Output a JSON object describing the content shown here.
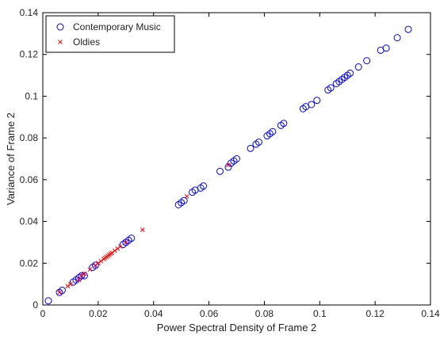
{
  "chart_data": {
    "type": "scatter",
    "title": "",
    "xlabel": "Power Spectral Density of Frame 2",
    "ylabel": "Variance of Frame 2",
    "xlim": [
      0,
      0.14
    ],
    "ylim": [
      0,
      0.14
    ],
    "xticks": [
      "0",
      "0.02",
      "0.04",
      "0.06",
      "0.08",
      "0.1",
      "0.12",
      "0.14"
    ],
    "yticks": [
      "0",
      "0.02",
      "0.04",
      "0.06",
      "0.08",
      "0.1",
      "0.12",
      "0.14"
    ],
    "grid": false,
    "legend_position": "top-left",
    "series": [
      {
        "name": "Contemporary Music",
        "marker": "circle",
        "color": "#0000ff",
        "points": [
          [
            0.002,
            0.002
          ],
          [
            0.006,
            0.006
          ],
          [
            0.007,
            0.007
          ],
          [
            0.011,
            0.011
          ],
          [
            0.012,
            0.012
          ],
          [
            0.013,
            0.013
          ],
          [
            0.014,
            0.014
          ],
          [
            0.015,
            0.014
          ],
          [
            0.018,
            0.018
          ],
          [
            0.019,
            0.019
          ],
          [
            0.029,
            0.029
          ],
          [
            0.03,
            0.03
          ],
          [
            0.031,
            0.031
          ],
          [
            0.032,
            0.032
          ],
          [
            0.049,
            0.048
          ],
          [
            0.05,
            0.049
          ],
          [
            0.051,
            0.05
          ],
          [
            0.054,
            0.054
          ],
          [
            0.055,
            0.055
          ],
          [
            0.057,
            0.056
          ],
          [
            0.058,
            0.057
          ],
          [
            0.064,
            0.064
          ],
          [
            0.067,
            0.066
          ],
          [
            0.068,
            0.068
          ],
          [
            0.069,
            0.069
          ],
          [
            0.07,
            0.07
          ],
          [
            0.075,
            0.075
          ],
          [
            0.077,
            0.077
          ],
          [
            0.078,
            0.078
          ],
          [
            0.081,
            0.081
          ],
          [
            0.082,
            0.082
          ],
          [
            0.083,
            0.083
          ],
          [
            0.086,
            0.086
          ],
          [
            0.087,
            0.087
          ],
          [
            0.094,
            0.094
          ],
          [
            0.095,
            0.095
          ],
          [
            0.097,
            0.096
          ],
          [
            0.099,
            0.098
          ],
          [
            0.103,
            0.103
          ],
          [
            0.104,
            0.104
          ],
          [
            0.106,
            0.106
          ],
          [
            0.107,
            0.107
          ],
          [
            0.108,
            0.108
          ],
          [
            0.109,
            0.109
          ],
          [
            0.11,
            0.11
          ],
          [
            0.111,
            0.111
          ],
          [
            0.114,
            0.114
          ],
          [
            0.117,
            0.117
          ],
          [
            0.122,
            0.122
          ],
          [
            0.124,
            0.123
          ],
          [
            0.128,
            0.128
          ],
          [
            0.132,
            0.132
          ]
        ]
      },
      {
        "name": "Oldies",
        "marker": "x",
        "color": "#ff0000",
        "points": [
          [
            0.006,
            0.006
          ],
          [
            0.009,
            0.009
          ],
          [
            0.01,
            0.01
          ],
          [
            0.013,
            0.012
          ],
          [
            0.014,
            0.014
          ],
          [
            0.015,
            0.015
          ],
          [
            0.017,
            0.017
          ],
          [
            0.019,
            0.019
          ],
          [
            0.02,
            0.02
          ],
          [
            0.021,
            0.021
          ],
          [
            0.022,
            0.022
          ],
          [
            0.0225,
            0.0225
          ],
          [
            0.023,
            0.023
          ],
          [
            0.0235,
            0.0235
          ],
          [
            0.024,
            0.024
          ],
          [
            0.0245,
            0.0245
          ],
          [
            0.025,
            0.025
          ],
          [
            0.026,
            0.026
          ],
          [
            0.027,
            0.027
          ],
          [
            0.028,
            0.028
          ],
          [
            0.03,
            0.03
          ],
          [
            0.036,
            0.036
          ],
          [
            0.052,
            0.052
          ],
          [
            0.067,
            0.067
          ]
        ]
      }
    ]
  }
}
